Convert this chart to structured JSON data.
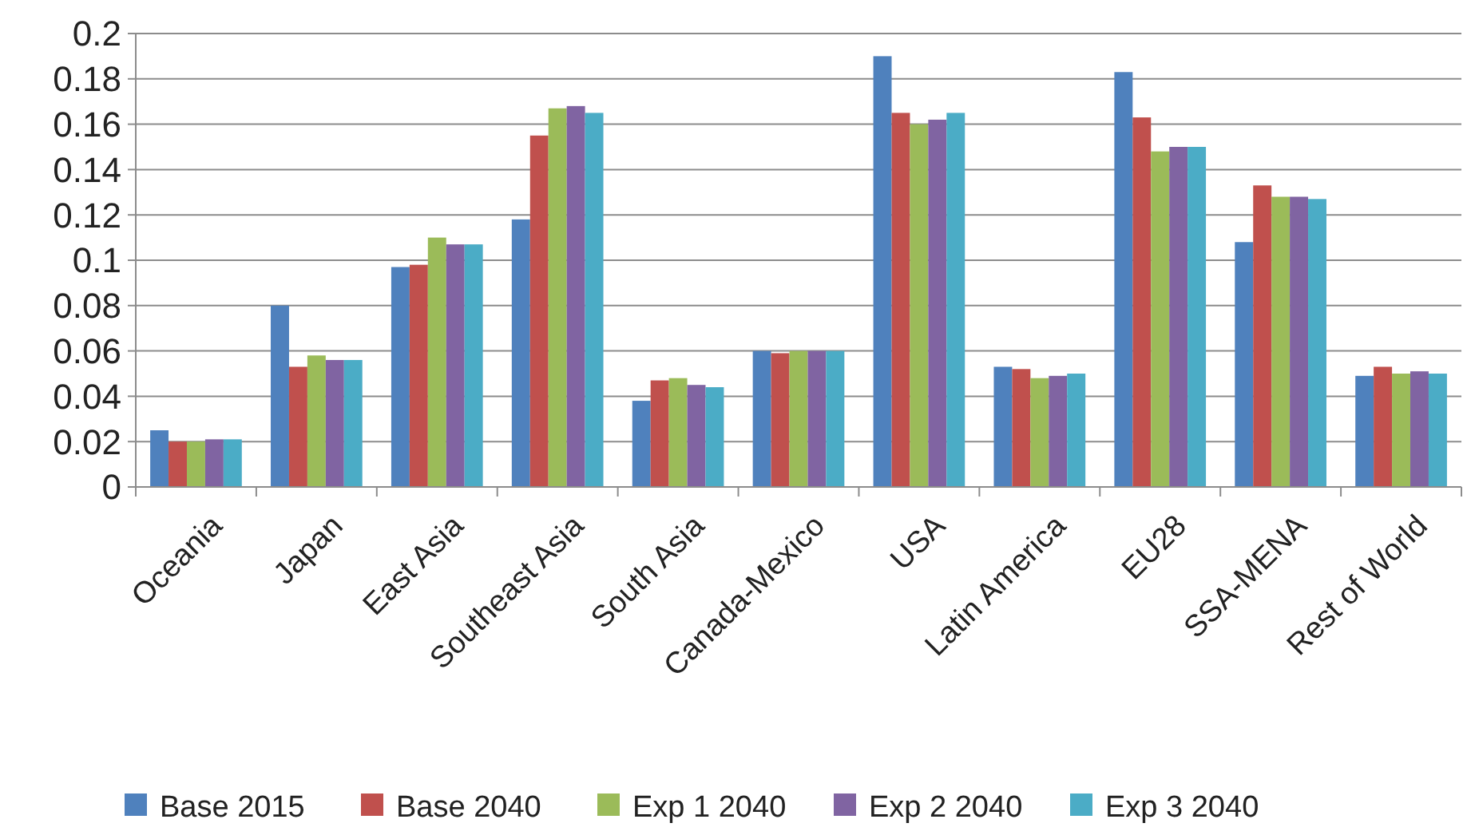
{
  "chart_data": {
    "type": "bar",
    "categories": [
      "Oceania",
      "Japan",
      "East Asia",
      "Southeast Asia",
      "South Asia",
      "Canada-Mexico",
      "USA",
      "Latin America",
      "EU28",
      "SSA-MENA",
      "Rest of World"
    ],
    "series": [
      {
        "name": "Base 2015",
        "color": "#4f81bd",
        "values": [
          0.025,
          0.08,
          0.097,
          0.118,
          0.038,
          0.06,
          0.19,
          0.053,
          0.183,
          0.108,
          0.049
        ]
      },
      {
        "name": "Base 2040",
        "color": "#c0504d",
        "values": [
          0.02,
          0.053,
          0.098,
          0.155,
          0.047,
          0.059,
          0.165,
          0.052,
          0.163,
          0.133,
          0.053
        ]
      },
      {
        "name": "Exp 1 2040",
        "color": "#9bbb59",
        "values": [
          0.02,
          0.058,
          0.11,
          0.167,
          0.048,
          0.06,
          0.16,
          0.048,
          0.148,
          0.128,
          0.05
        ]
      },
      {
        "name": "Exp 2 2040",
        "color": "#8064a2",
        "values": [
          0.021,
          0.056,
          0.107,
          0.168,
          0.045,
          0.06,
          0.162,
          0.049,
          0.15,
          0.128,
          0.051
        ]
      },
      {
        "name": "Exp 3 2040",
        "color": "#4bacc6",
        "values": [
          0.021,
          0.056,
          0.107,
          0.165,
          0.044,
          0.06,
          0.165,
          0.05,
          0.15,
          0.127,
          0.05
        ]
      }
    ],
    "ylim": [
      0,
      0.2
    ],
    "yticks": [
      0,
      0.02,
      0.04,
      0.06,
      0.08,
      0.1,
      0.12,
      0.14,
      0.16,
      0.18,
      0.2
    ],
    "grid": "y",
    "legend": "bottom"
  }
}
